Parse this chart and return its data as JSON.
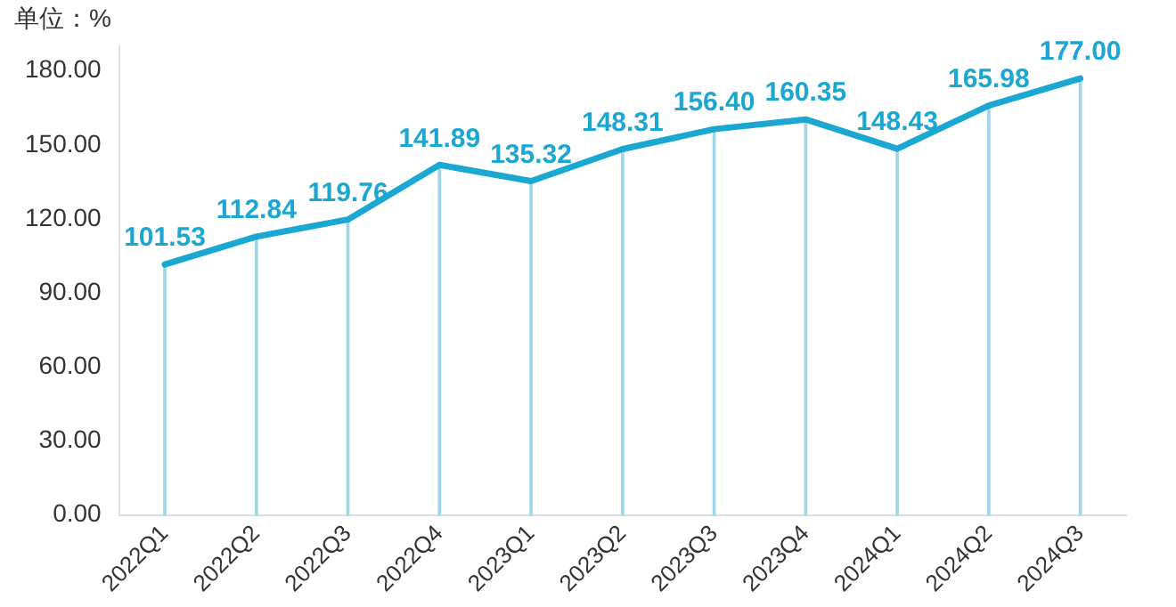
{
  "chart_data": {
    "type": "line",
    "ylabel": "单位：%",
    "categories": [
      "2022Q1",
      "2022Q2",
      "2022Q3",
      "2022Q4",
      "2023Q1",
      "2023Q2",
      "2023Q3",
      "2023Q4",
      "2024Q1",
      "2024Q2",
      "2024Q3"
    ],
    "series": [
      {
        "type": "bar",
        "color": "#9fd6e8",
        "values": [
          101.53,
          112.84,
          119.76,
          141.89,
          135.32,
          148.31,
          156.4,
          160.35,
          148.43,
          165.98,
          177.0
        ]
      },
      {
        "color": "#1aa7d1",
        "values": [
          101.53,
          112.84,
          119.76,
          141.89,
          135.32,
          148.31,
          156.4,
          160.35,
          148.43,
          165.98,
          177.0
        ],
        "value_labels": [
          "101.53",
          "112.84",
          "119.76",
          "141.89",
          "135.32",
          "148.31",
          "156.40",
          "160.35",
          "148.43",
          "165.98",
          "177.00"
        ]
      }
    ],
    "ylim": [
      0,
      190
    ],
    "yticks": [
      {
        "value": 0,
        "label": "0.00"
      },
      {
        "value": 30,
        "label": "30.00"
      },
      {
        "value": 60,
        "label": "60.00"
      },
      {
        "value": 90,
        "label": "90.00"
      },
      {
        "value": 120,
        "label": "120.00"
      },
      {
        "value": 150,
        "label": "150.00"
      },
      {
        "value": 180,
        "label": "180.00"
      }
    ],
    "grid": false,
    "legend": false,
    "marker": "none",
    "line_style": "solid"
  }
}
